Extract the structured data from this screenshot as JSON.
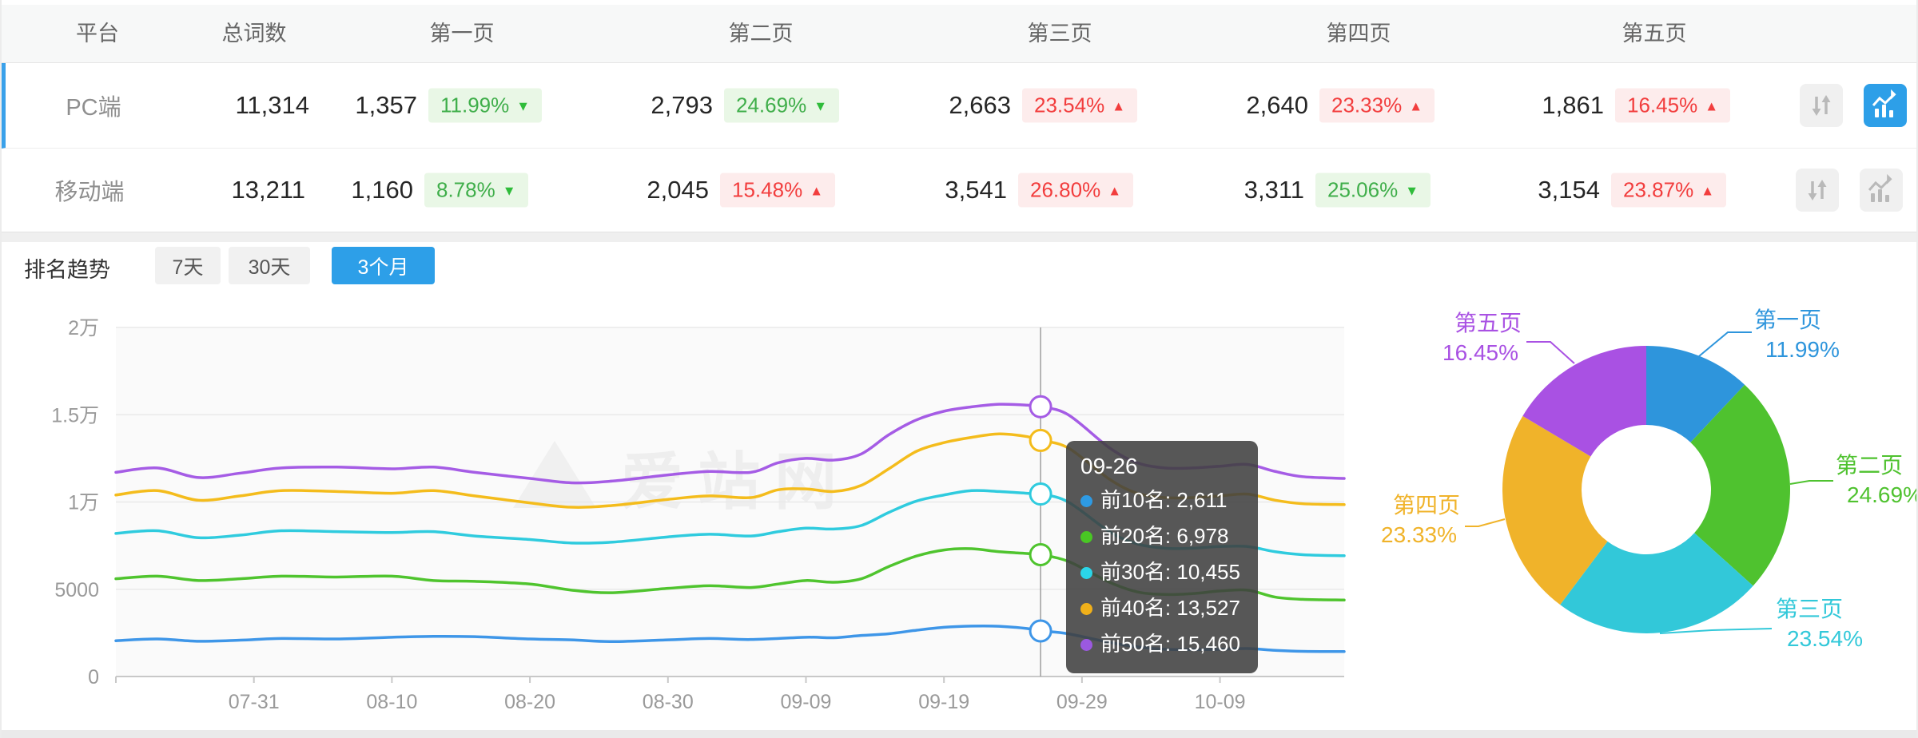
{
  "colors": {
    "accent_blue": "#2d9fe8",
    "active_row_border": "#3aa1ea",
    "badge_green_text": "#3fae4a",
    "badge_green_bg": "#e9f7e6",
    "badge_red_text": "#f23d3d",
    "badge_red_bg": "#fdecec",
    "header_bg": "#f7f8f8",
    "grid_line": "#e9e9e9",
    "axis_line": "#c8c8c8"
  },
  "icons": {
    "sort": "sort-arrows-icon",
    "trend": "trend-chart-icon"
  },
  "table": {
    "headers": [
      "平台",
      "总词数",
      "第一页",
      "第二页",
      "第三页",
      "第四页",
      "第五页"
    ],
    "rows": [
      {
        "platform": "PC端",
        "total": "11,314",
        "trend_button_state": "active",
        "pages": [
          {
            "value": "1,357",
            "pct": "11.99%",
            "arrow": "▼",
            "trend": "down"
          },
          {
            "value": "2,793",
            "pct": "24.69%",
            "arrow": "▼",
            "trend": "down"
          },
          {
            "value": "2,663",
            "pct": "23.54%",
            "arrow": "▲",
            "trend": "up"
          },
          {
            "value": "2,640",
            "pct": "23.33%",
            "arrow": "▲",
            "trend": "up"
          },
          {
            "value": "1,861",
            "pct": "16.45%",
            "arrow": "▲",
            "trend": "up"
          }
        ]
      },
      {
        "platform": "移动端",
        "total": "13,211",
        "trend_button_state": "inactive",
        "pages": [
          {
            "value": "1,160",
            "pct": "8.78%",
            "arrow": "▼",
            "trend": "down"
          },
          {
            "value": "2,045",
            "pct": "15.48%",
            "arrow": "▲",
            "trend": "up"
          },
          {
            "value": "3,541",
            "pct": "26.80%",
            "arrow": "▲",
            "trend": "up"
          },
          {
            "value": "3,311",
            "pct": "25.06%",
            "arrow": "▼",
            "trend": "down"
          },
          {
            "value": "3,154",
            "pct": "23.87%",
            "arrow": "▲",
            "trend": "up"
          }
        ]
      }
    ]
  },
  "trend_controls": {
    "label": "排名趋势",
    "ranges": [
      "7天",
      "30天",
      "3个月"
    ],
    "active_range": "3个月"
  },
  "tooltip": {
    "title": "09-26",
    "items": [
      {
        "label": "前10名",
        "value": "2,611",
        "color": "#2e9ae3"
      },
      {
        "label": "前20名",
        "value": "6,978",
        "color": "#49c724"
      },
      {
        "label": "前30名",
        "value": "10,455",
        "color": "#2bd5e8"
      },
      {
        "label": "前40名",
        "value": "13,527",
        "color": "#f0b01a"
      },
      {
        "label": "前50名",
        "value": "15,460",
        "color": "#9b59e0"
      }
    ]
  },
  "chart_data": [
    {
      "type": "line",
      "title": "排名趋势",
      "xlabel": "",
      "ylabel": "",
      "x_tick_labels": [
        "07-31",
        "08-10",
        "08-20",
        "08-30",
        "09-09",
        "09-19",
        "09-29",
        "10-09"
      ],
      "x_range": [
        "07-21",
        "10-18"
      ],
      "y_tick_labels": [
        "0",
        "5000",
        "1万",
        "1.5万",
        "2万"
      ],
      "ylim": [
        0,
        20000
      ],
      "grid": true,
      "watermark": "爱站网",
      "crosshair": {
        "date": "09-26",
        "values": [
          2611,
          6978,
          10455,
          13527,
          15460
        ]
      },
      "series": [
        {
          "name": "前10名",
          "color": "#3e96e8",
          "points": [
            [
              "07-21",
              2050
            ],
            [
              "07-24",
              2150
            ],
            [
              "07-27",
              2020
            ],
            [
              "07-30",
              2080
            ],
            [
              "08-02",
              2180
            ],
            [
              "08-06",
              2150
            ],
            [
              "08-10",
              2250
            ],
            [
              "08-13",
              2300
            ],
            [
              "08-16",
              2280
            ],
            [
              "08-20",
              2150
            ],
            [
              "08-23",
              2100
            ],
            [
              "08-26",
              2000
            ],
            [
              "08-30",
              2100
            ],
            [
              "09-02",
              2180
            ],
            [
              "09-05",
              2120
            ],
            [
              "09-09",
              2250
            ],
            [
              "09-11",
              2220
            ],
            [
              "09-13",
              2350
            ],
            [
              "09-15",
              2450
            ],
            [
              "09-17",
              2650
            ],
            [
              "09-19",
              2820
            ],
            [
              "09-21",
              2890
            ],
            [
              "09-23",
              2880
            ],
            [
              "09-25",
              2750
            ],
            [
              "09-26",
              2611
            ],
            [
              "09-28",
              2450
            ],
            [
              "10-01",
              1950
            ],
            [
              "10-03",
              1700
            ],
            [
              "10-05",
              1560
            ],
            [
              "10-07",
              1540
            ],
            [
              "10-09",
              1560
            ],
            [
              "10-11",
              1600
            ],
            [
              "10-13",
              1500
            ],
            [
              "10-15",
              1440
            ],
            [
              "10-18",
              1430
            ]
          ]
        },
        {
          "name": "前20名",
          "color": "#4fc42e",
          "points": [
            [
              "07-21",
              5600
            ],
            [
              "07-24",
              5750
            ],
            [
              "07-27",
              5500
            ],
            [
              "07-30",
              5600
            ],
            [
              "08-02",
              5750
            ],
            [
              "08-06",
              5700
            ],
            [
              "08-10",
              5750
            ],
            [
              "08-13",
              5500
            ],
            [
              "08-16",
              5450
            ],
            [
              "08-20",
              5300
            ],
            [
              "08-23",
              4950
            ],
            [
              "08-26",
              4800
            ],
            [
              "08-30",
              5050
            ],
            [
              "09-02",
              5200
            ],
            [
              "09-05",
              5100
            ],
            [
              "09-07",
              5300
            ],
            [
              "09-09",
              5500
            ],
            [
              "09-11",
              5400
            ],
            [
              "09-13",
              5600
            ],
            [
              "09-15",
              6300
            ],
            [
              "09-17",
              6900
            ],
            [
              "09-19",
              7250
            ],
            [
              "09-21",
              7320
            ],
            [
              "09-23",
              7150
            ],
            [
              "09-25",
              7050
            ],
            [
              "09-26",
              6978
            ],
            [
              "09-28",
              6600
            ],
            [
              "10-01",
              5400
            ],
            [
              "10-03",
              4850
            ],
            [
              "10-05",
              4700
            ],
            [
              "10-07",
              4750
            ],
            [
              "10-09",
              4900
            ],
            [
              "10-11",
              4950
            ],
            [
              "10-13",
              4550
            ],
            [
              "10-15",
              4420
            ],
            [
              "10-18",
              4380
            ]
          ]
        },
        {
          "name": "前30名",
          "color": "#2fcbde",
          "points": [
            [
              "07-21",
              8200
            ],
            [
              "07-24",
              8350
            ],
            [
              "07-27",
              7950
            ],
            [
              "07-30",
              8100
            ],
            [
              "08-02",
              8350
            ],
            [
              "08-06",
              8300
            ],
            [
              "08-10",
              8250
            ],
            [
              "08-13",
              8300
            ],
            [
              "08-16",
              8050
            ],
            [
              "08-20",
              7850
            ],
            [
              "08-23",
              7650
            ],
            [
              "08-26",
              7700
            ],
            [
              "08-30",
              8000
            ],
            [
              "09-02",
              8150
            ],
            [
              "09-05",
              8050
            ],
            [
              "09-07",
              8300
            ],
            [
              "09-09",
              8500
            ],
            [
              "09-11",
              8450
            ],
            [
              "09-13",
              8650
            ],
            [
              "09-15",
              9400
            ],
            [
              "09-17",
              10050
            ],
            [
              "09-19",
              10400
            ],
            [
              "09-21",
              10650
            ],
            [
              "09-23",
              10600
            ],
            [
              "09-25",
              10500
            ],
            [
              "09-26",
              10455
            ],
            [
              "09-28",
              10000
            ],
            [
              "10-01",
              8300
            ],
            [
              "10-03",
              7600
            ],
            [
              "10-05",
              7350
            ],
            [
              "10-07",
              7350
            ],
            [
              "10-09",
              7450
            ],
            [
              "10-11",
              7450
            ],
            [
              "10-13",
              7150
            ],
            [
              "10-15",
              6980
            ],
            [
              "10-18",
              6920
            ]
          ]
        },
        {
          "name": "前40名",
          "color": "#f4bc1c",
          "points": [
            [
              "07-21",
              10400
            ],
            [
              "07-24",
              10650
            ],
            [
              "07-27",
              10100
            ],
            [
              "07-30",
              10350
            ],
            [
              "08-02",
              10650
            ],
            [
              "08-06",
              10600
            ],
            [
              "08-10",
              10500
            ],
            [
              "08-13",
              10650
            ],
            [
              "08-16",
              10350
            ],
            [
              "08-20",
              9950
            ],
            [
              "08-23",
              9700
            ],
            [
              "08-26",
              9800
            ],
            [
              "08-30",
              10150
            ],
            [
              "09-02",
              10350
            ],
            [
              "09-05",
              10250
            ],
            [
              "09-07",
              10700
            ],
            [
              "09-09",
              10750
            ],
            [
              "09-11",
              10600
            ],
            [
              "09-13",
              10950
            ],
            [
              "09-15",
              11900
            ],
            [
              "09-17",
              12900
            ],
            [
              "09-19",
              13400
            ],
            [
              "09-21",
              13700
            ],
            [
              "09-23",
              13900
            ],
            [
              "09-25",
              13750
            ],
            [
              "09-26",
              13527
            ],
            [
              "09-28",
              13100
            ],
            [
              "10-01",
              11300
            ],
            [
              "10-03",
              10500
            ],
            [
              "10-05",
              10250
            ],
            [
              "10-07",
              10250
            ],
            [
              "10-09",
              10350
            ],
            [
              "10-11",
              10450
            ],
            [
              "10-13",
              10100
            ],
            [
              "10-15",
              9900
            ],
            [
              "10-18",
              9850
            ]
          ]
        },
        {
          "name": "前50名",
          "color": "#a55ce5",
          "points": [
            [
              "07-21",
              11700
            ],
            [
              "07-24",
              11950
            ],
            [
              "07-27",
              11400
            ],
            [
              "07-30",
              11650
            ],
            [
              "08-02",
              11950
            ],
            [
              "08-06",
              12000
            ],
            [
              "08-10",
              11900
            ],
            [
              "08-13",
              12000
            ],
            [
              "08-16",
              11700
            ],
            [
              "08-20",
              11350
            ],
            [
              "08-23",
              11100
            ],
            [
              "08-26",
              11200
            ],
            [
              "08-30",
              11550
            ],
            [
              "09-02",
              11750
            ],
            [
              "09-05",
              11700
            ],
            [
              "09-07",
              12250
            ],
            [
              "09-09",
              12500
            ],
            [
              "09-11",
              12400
            ],
            [
              "09-13",
              12750
            ],
            [
              "09-15",
              13850
            ],
            [
              "09-17",
              14700
            ],
            [
              "09-19",
              15200
            ],
            [
              "09-21",
              15450
            ],
            [
              "09-23",
              15600
            ],
            [
              "09-25",
              15550
            ],
            [
              "09-26",
              15460
            ],
            [
              "09-28",
              15000
            ],
            [
              "10-01",
              13100
            ],
            [
              "10-03",
              12250
            ],
            [
              "10-05",
              11950
            ],
            [
              "10-07",
              11950
            ],
            [
              "10-09",
              12050
            ],
            [
              "10-11",
              12150
            ],
            [
              "10-13",
              11750
            ],
            [
              "10-15",
              11450
            ],
            [
              "10-18",
              11350
            ]
          ]
        }
      ]
    },
    {
      "type": "donut",
      "slices": [
        {
          "label": "第一页",
          "pct": 11.99,
          "pct_label": "11.99%",
          "color": "#2e95dc"
        },
        {
          "label": "第二页",
          "pct": 24.69,
          "pct_label": "24.69%",
          "color": "#4fc22f"
        },
        {
          "label": "第三页",
          "pct": 23.54,
          "pct_label": "23.54%",
          "color": "#32c8d9"
        },
        {
          "label": "第四页",
          "pct": 23.33,
          "pct_label": "23.33%",
          "color": "#f0b32a"
        },
        {
          "label": "第五页",
          "pct": 16.45,
          "pct_label": "16.45%",
          "color": "#a951e3"
        }
      ]
    }
  ]
}
